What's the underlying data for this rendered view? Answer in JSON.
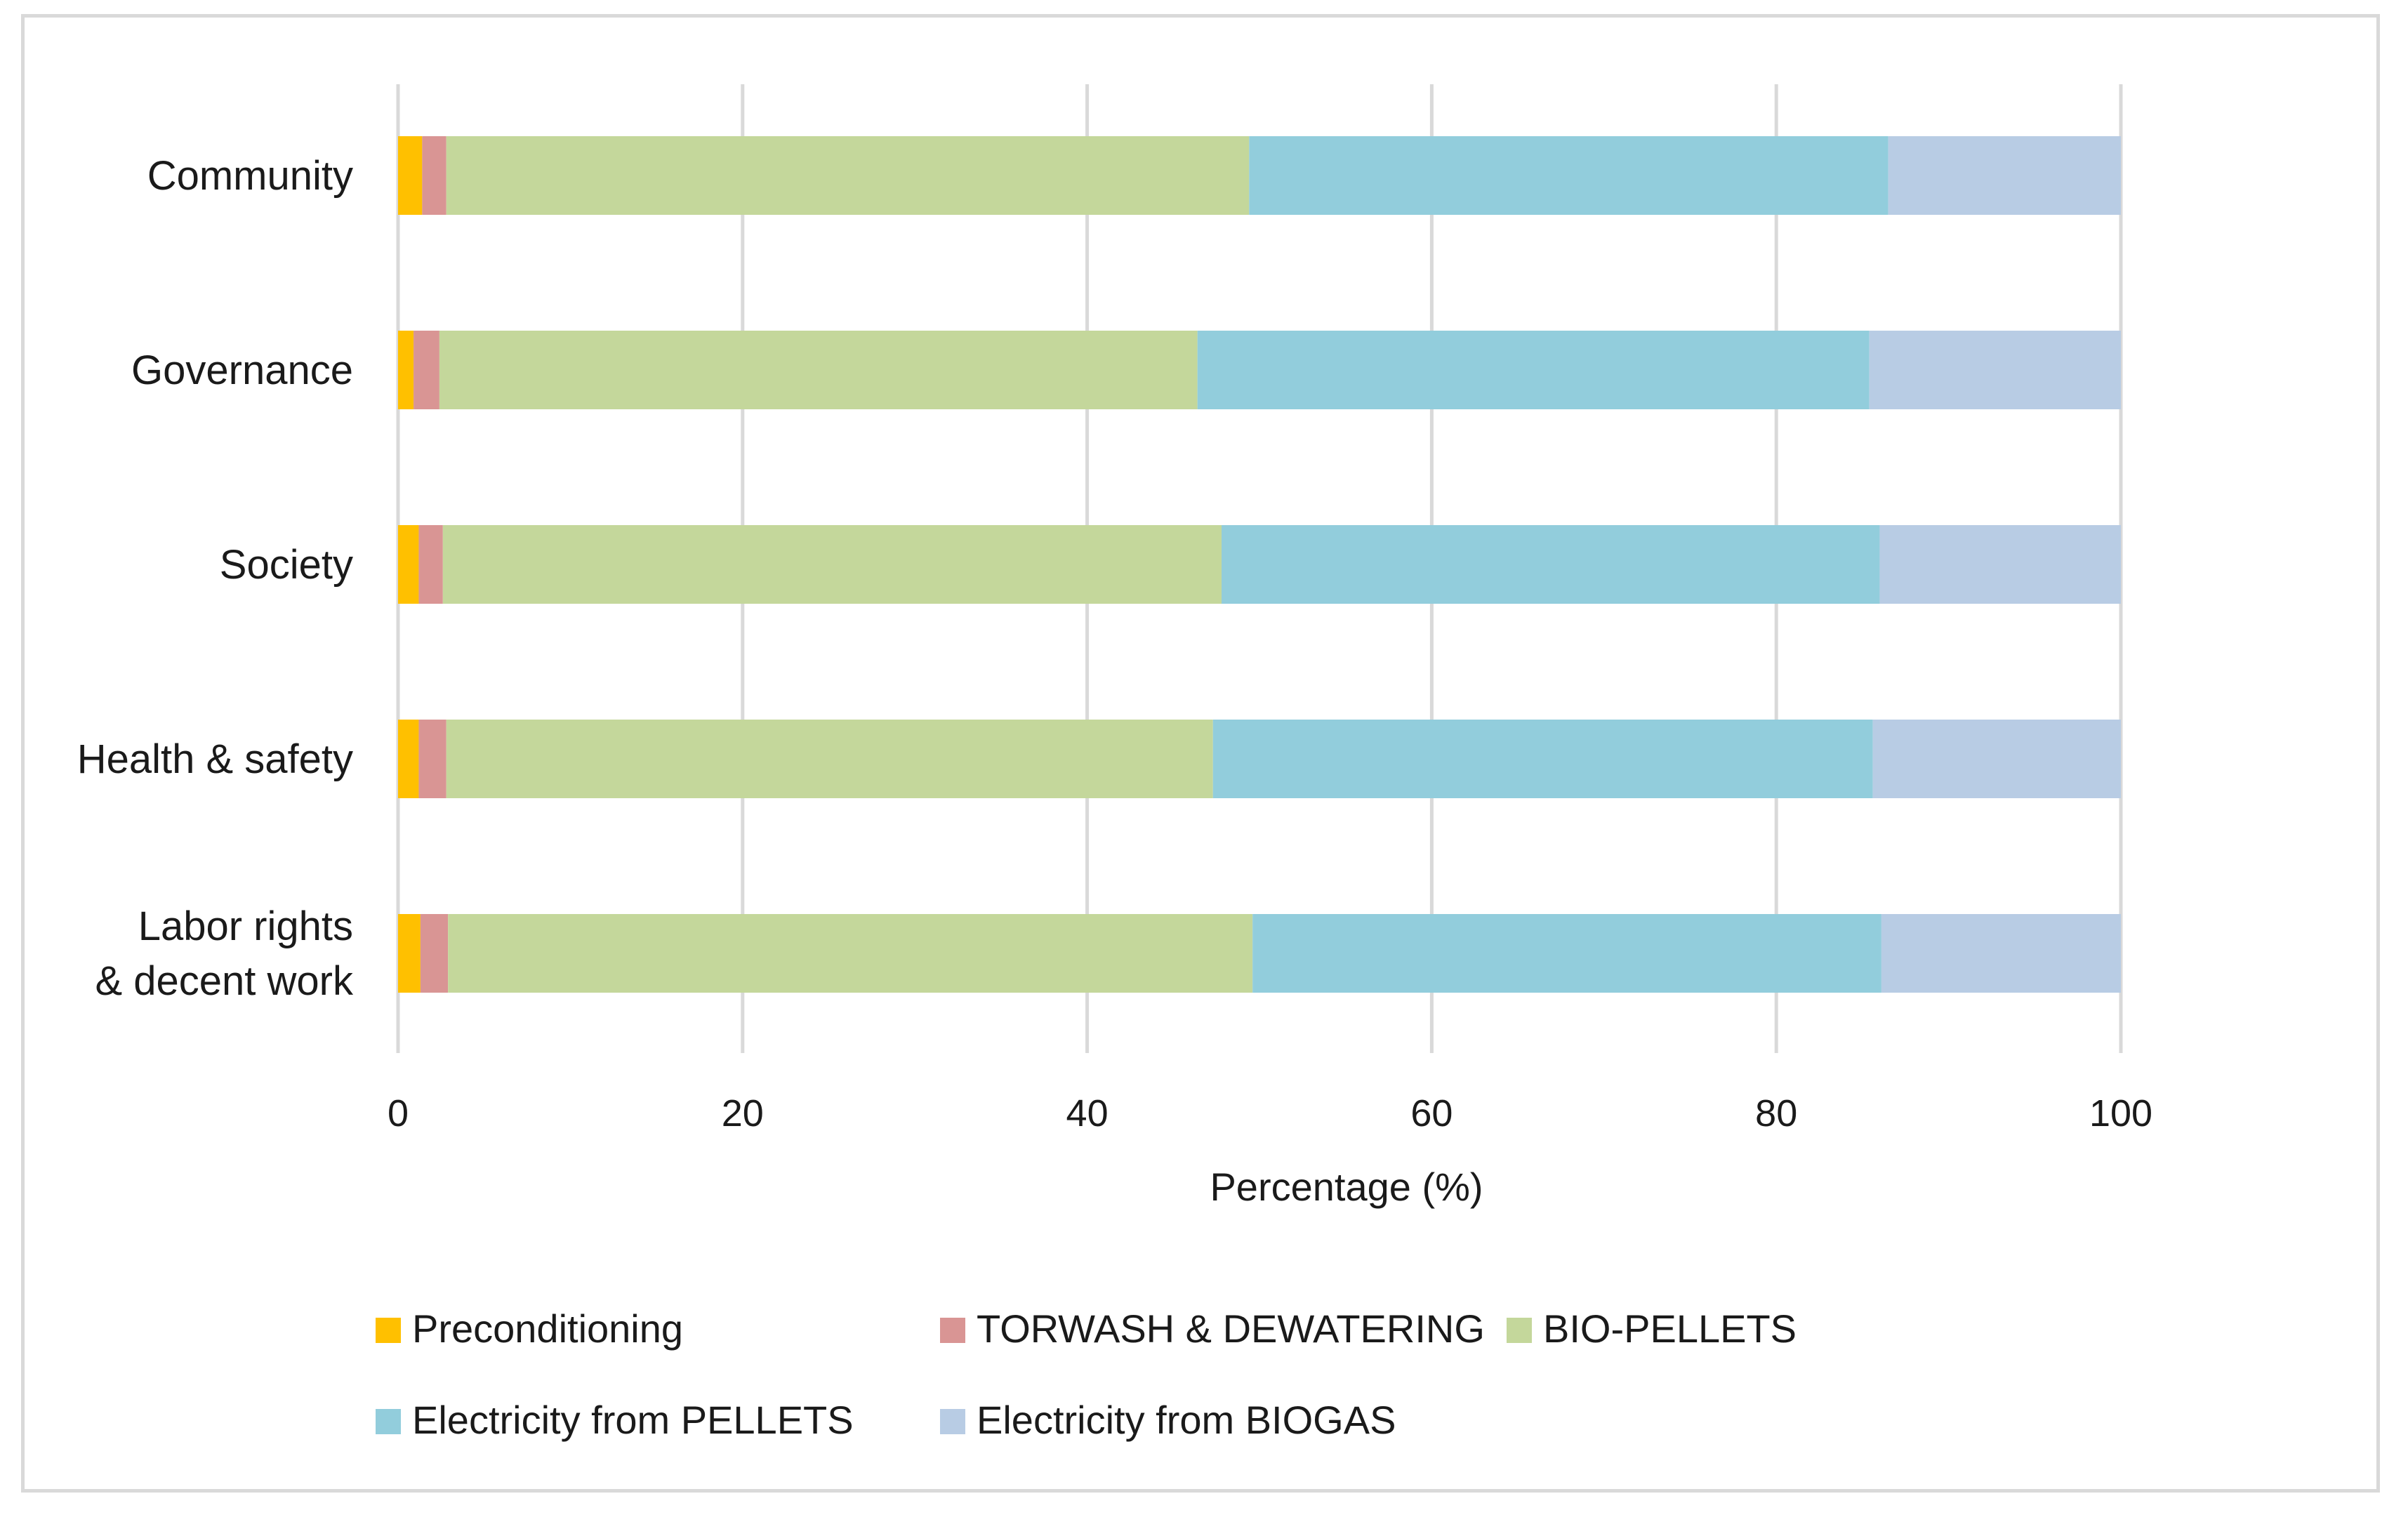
{
  "chart_data": {
    "type": "bar",
    "orientation": "horizontal",
    "stacked": true,
    "title": "",
    "xlabel": "Percentage (%)",
    "ylabel": "",
    "xlim": [
      0,
      100
    ],
    "xticks": [
      0,
      20,
      40,
      60,
      80,
      100
    ],
    "grid": true,
    "legend_position": "bottom",
    "categories": [
      [
        "Community"
      ],
      [
        "Governance"
      ],
      [
        "Society"
      ],
      [
        "Health & safety"
      ],
      [
        "Labor rights",
        "& decent work"
      ]
    ],
    "series": [
      {
        "name": "Preconditioning",
        "color": "#ffc000",
        "values": [
          1.4,
          0.9,
          1.2,
          1.2,
          1.3
        ]
      },
      {
        "name": "TORWASH & DEWATERING",
        "color": "#d99594",
        "values": [
          1.4,
          1.5,
          1.4,
          1.6,
          1.6
        ]
      },
      {
        "name": "BIO-PELLETS",
        "color": "#c4d79b",
        "values": [
          46.6,
          44.0,
          45.2,
          44.5,
          46.7
        ]
      },
      {
        "name": "Electricity from PELLETS",
        "color": "#92cddc",
        "values": [
          37.1,
          39.0,
          38.2,
          38.3,
          36.5
        ]
      },
      {
        "name": "Electricity from BIOGAS",
        "color": "#b8cce4",
        "values": [
          13.5,
          14.6,
          14.0,
          14.4,
          13.9
        ]
      }
    ]
  }
}
